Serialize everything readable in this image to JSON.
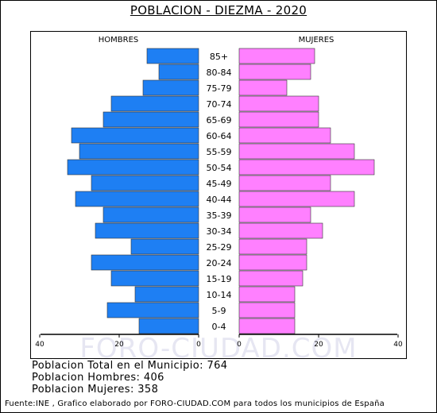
{
  "title": "POBLACION - DIEZMA - 2020",
  "colors": {
    "hombres": "#1E7FF3",
    "mujeres": "#FF80FF",
    "bar_stroke": "#333333"
  },
  "chart_data": {
    "type": "bar",
    "orientation": "horizontal",
    "subtype": "population-pyramid",
    "categories": [
      "85+",
      "80-84",
      "75-79",
      "70-74",
      "65-69",
      "60-64",
      "55-59",
      "50-54",
      "45-49",
      "40-44",
      "35-39",
      "30-34",
      "25-29",
      "20-24",
      "15-19",
      "10-14",
      "5-9",
      "0-4"
    ],
    "series": [
      {
        "name": "HOMBRES",
        "values": [
          13,
          10,
          14,
          22,
          24,
          32,
          30,
          33,
          27,
          31,
          24,
          26,
          17,
          27,
          22,
          16,
          23,
          15
        ]
      },
      {
        "name": "MUJERES",
        "values": [
          19,
          18,
          12,
          20,
          20,
          23,
          29,
          34,
          23,
          29,
          18,
          21,
          17,
          17,
          16,
          14,
          14,
          14
        ]
      }
    ],
    "xlim": [
      0,
      40
    ],
    "x_ticks": [
      "40",
      "20",
      "0",
      "0",
      "20",
      "40"
    ],
    "legend": "top"
  },
  "summary": {
    "total": "Poblacion Total en el Municipio: 764",
    "hombres": "Poblacion Hombres: 406",
    "mujeres": "Poblacion Mujeres: 358"
  },
  "footer": "Fuente:INE , Grafico elaborado por FORO-CIUDAD.COM para todos los municipios de España",
  "watermark": "FORO-CIUDAD.COM"
}
